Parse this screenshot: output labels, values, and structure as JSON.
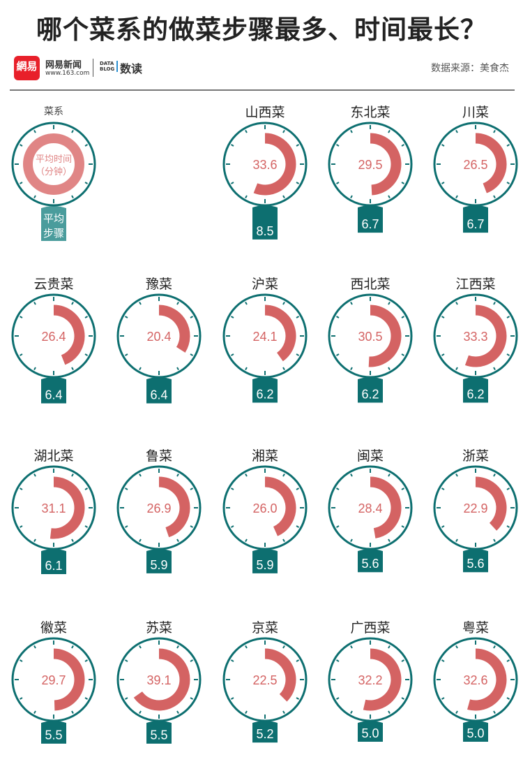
{
  "title": "哪个菜系的做菜步骤最多、时间最长？",
  "header": {
    "logo_text": "網易",
    "brand": "网易新闻",
    "url": "www.163.com",
    "datablog": "DATA BLOG",
    "column": "数读",
    "source": "数据来源：美食杰"
  },
  "legend": {
    "cuisine_label": "菜系",
    "time_label_1": "平均时间",
    "time_label_2": "（分钟）",
    "steps_label_1": "平均",
    "steps_label_2": "步骤"
  },
  "colors": {
    "ring": "#0d6f70",
    "arc": "#d46363",
    "legend_arc": "#e08585",
    "tab": "#0d6f70",
    "legend_tab": "#4a9c9c",
    "value_text": "#d46363"
  },
  "chart_data": {
    "type": "radial",
    "arc_full_scale_minutes": 60,
    "items": [
      {
        "name": "山西菜",
        "minutes": 33.6,
        "steps": 8.5
      },
      {
        "name": "东北菜",
        "minutes": 29.5,
        "steps": 6.7
      },
      {
        "name": "川菜",
        "minutes": 26.5,
        "steps": 6.7
      },
      {
        "name": "云贵菜",
        "minutes": 26.4,
        "steps": 6.4
      },
      {
        "name": "豫菜",
        "minutes": 20.4,
        "steps": 6.4
      },
      {
        "name": "沪菜",
        "minutes": 24.1,
        "steps": 6.2
      },
      {
        "name": "西北菜",
        "minutes": 30.5,
        "steps": 6.2
      },
      {
        "name": "江西菜",
        "minutes": 33.3,
        "steps": 6.2
      },
      {
        "name": "湖北菜",
        "minutes": 31.1,
        "steps": 6.1
      },
      {
        "name": "鲁菜",
        "minutes": 26.9,
        "steps": 5.9
      },
      {
        "name": "湘菜",
        "minutes": 26.0,
        "steps": 5.9
      },
      {
        "name": "闽菜",
        "minutes": 28.4,
        "steps": 5.6
      },
      {
        "name": "浙菜",
        "minutes": 22.9,
        "steps": 5.6
      },
      {
        "name": "徽菜",
        "minutes": 29.7,
        "steps": 5.5
      },
      {
        "name": "苏菜",
        "minutes": 39.1,
        "steps": 5.5
      },
      {
        "name": "京菜",
        "minutes": 22.5,
        "steps": 5.2
      },
      {
        "name": "广西菜",
        "minutes": 32.2,
        "steps": 5.0
      },
      {
        "name": "粤菜",
        "minutes": 32.6,
        "steps": 5.0
      }
    ]
  }
}
